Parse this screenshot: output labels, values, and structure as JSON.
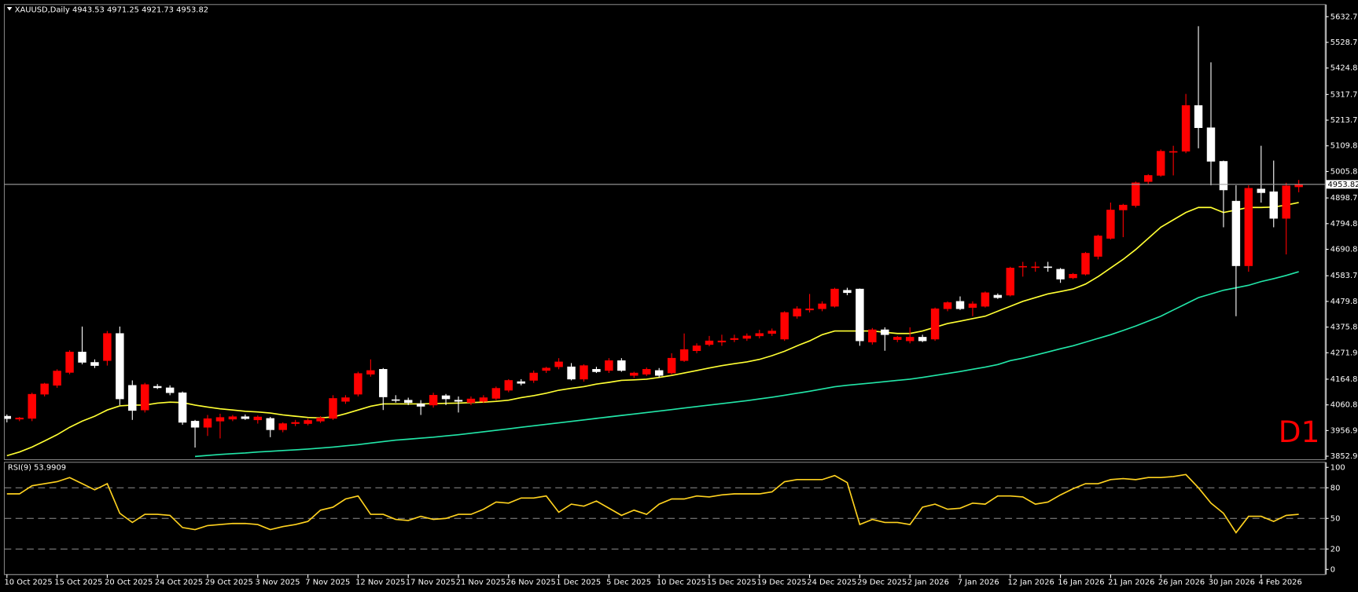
{
  "chart_data": [
    {
      "type": "candlestick",
      "title": "XAUUSD,Daily",
      "categories": [
        "10 Oct 2025",
        null,
        null,
        null,
        "15 Oct 2025",
        null,
        null,
        null,
        "20 Oct 2025",
        null,
        null,
        null,
        "24 Oct 2025",
        null,
        null,
        null,
        "29 Oct 2025",
        null,
        null,
        null,
        "3 Nov 2025",
        null,
        null,
        null,
        "7 Nov 2025",
        null,
        null,
        null,
        "12 Nov 2025",
        null,
        null,
        null,
        "17 Nov 2025",
        null,
        null,
        null,
        "21 Nov 2025",
        null,
        null,
        null,
        "26 Nov 2025",
        null,
        null,
        null,
        "1 Dec 2025",
        null,
        null,
        null,
        "5 Dec 2025",
        null,
        null,
        null,
        "10 Dec 2025",
        null,
        null,
        null,
        "15 Dec 2025",
        null,
        null,
        null,
        "19 Dec 2025",
        null,
        null,
        null,
        "24 Dec 2025",
        null,
        null,
        null,
        "29 Dec 2025",
        null,
        null,
        null,
        "2 Jan 2026",
        null,
        null,
        null,
        "7 Jan 2026",
        null,
        null,
        null,
        "12 Jan 2026",
        null,
        null,
        null,
        "16 Jan 2026",
        null,
        null,
        null,
        "21 Jan 2026",
        null,
        null,
        null,
        "26 Jan 2026",
        null,
        null,
        null,
        "30 Jan 2026",
        null,
        null,
        null,
        "4 Feb 2026",
        null,
        null,
        null
      ],
      "open": [
        4015,
        4003,
        4006,
        4104,
        4140,
        4192,
        4275,
        4233,
        4240,
        4350,
        4140,
        4040,
        4136,
        4130,
        4110,
        3995,
        3970,
        3995,
        4003,
        4013,
        4000,
        4006,
        3960,
        3985,
        3985,
        3995,
        4006,
        4075,
        4104,
        4185,
        4205,
        4082,
        4080,
        4065,
        4060,
        4098,
        4080,
        4070,
        4075,
        4087,
        4120,
        4155,
        4160,
        4200,
        4215,
        4215,
        4165,
        4205,
        4200,
        4240,
        4180,
        4185,
        4200,
        4190,
        4240,
        4280,
        4305,
        4315,
        4325,
        4330,
        4340,
        4350,
        4327,
        4420,
        4445,
        4450,
        4460,
        4525,
        4530,
        4315,
        4365,
        4325,
        4320,
        4335,
        4327,
        4450,
        4480,
        4455,
        4460,
        4505,
        4505,
        4620,
        4618,
        4620,
        4610,
        4575,
        4590,
        4662,
        4735,
        4850,
        4868,
        4965,
        4990,
        5085,
        5088,
        5273,
        5183,
        5047,
        4886,
        4624,
        4935,
        4924,
        4816,
        4943.53
      ],
      "high": [
        4022,
        4012,
        4110,
        4150,
        4205,
        4282,
        4378,
        4245,
        4360,
        4378,
        4160,
        4150,
        4145,
        4140,
        4115,
        4000,
        4020,
        4025,
        4020,
        4022,
        4018,
        4012,
        3990,
        4000,
        4005,
        4015,
        4100,
        4100,
        4195,
        4245,
        4210,
        4100,
        4090,
        4080,
        4110,
        4105,
        4095,
        4095,
        4100,
        4135,
        4165,
        4165,
        4200,
        4215,
        4250,
        4230,
        4225,
        4215,
        4250,
        4250,
        4195,
        4212,
        4210,
        4270,
        4350,
        4310,
        4340,
        4345,
        4345,
        4350,
        4365,
        4370,
        4440,
        4460,
        4510,
        4480,
        4535,
        4535,
        4532,
        4372,
        4375,
        4340,
        4375,
        4345,
        4455,
        4480,
        4500,
        4480,
        4520,
        4512,
        4620,
        4640,
        4640,
        4640,
        4615,
        4595,
        4680,
        4750,
        4880,
        4875,
        4965,
        4995,
        5095,
        5110,
        5320,
        5594,
        5448,
        5050,
        4950,
        4950,
        5110,
        5050,
        4960,
        4971.25
      ],
      "low": [
        3990,
        3995,
        3995,
        4095,
        4130,
        4185,
        4225,
        4210,
        4220,
        4060,
        4000,
        4030,
        4125,
        4100,
        3980,
        3888,
        3935,
        3925,
        3995,
        4000,
        3985,
        3930,
        3950,
        3975,
        3978,
        3988,
        4000,
        4065,
        4095,
        4175,
        4040,
        4070,
        4060,
        4020,
        4050,
        4060,
        4030,
        4060,
        4068,
        4080,
        4112,
        4140,
        4150,
        4190,
        4205,
        4160,
        4155,
        4190,
        4190,
        4195,
        4170,
        4178,
        4172,
        4185,
        4235,
        4270,
        4298,
        4300,
        4315,
        4320,
        4330,
        4340,
        4320,
        4410,
        4435,
        4440,
        4455,
        4505,
        4300,
        4305,
        4280,
        4315,
        4310,
        4315,
        4320,
        4440,
        4445,
        4420,
        4455,
        4490,
        4500,
        4580,
        4600,
        4600,
        4555,
        4570,
        4585,
        4650,
        4730,
        4740,
        4860,
        4955,
        4985,
        4990,
        5080,
        5100,
        4950,
        4780,
        4420,
        4600,
        4880,
        4780,
        4670,
        4921.73
      ],
      "close": [
        4005,
        4008,
        4104,
        4146,
        4198,
        4275,
        4233,
        4220,
        4350,
        4085,
        4038,
        4143,
        4130,
        4110,
        3990,
        3970,
        4005,
        4010,
        4013,
        4005,
        4012,
        3960,
        3985,
        3990,
        3998,
        4008,
        4087,
        4090,
        4188,
        4200,
        4093,
        4080,
        4070,
        4055,
        4100,
        4085,
        4075,
        4085,
        4090,
        4128,
        4160,
        4148,
        4190,
        4210,
        4235,
        4165,
        4220,
        4195,
        4240,
        4200,
        4190,
        4205,
        4180,
        4250,
        4285,
        4300,
        4320,
        4320,
        4330,
        4340,
        4350,
        4360,
        4435,
        4450,
        4450,
        4470,
        4530,
        4515,
        4320,
        4365,
        4345,
        4335,
        4335,
        4320,
        4450,
        4475,
        4450,
        4470,
        4515,
        4495,
        4615,
        4622,
        4620,
        4618,
        4570,
        4590,
        4675,
        4745,
        4850,
        4870,
        4960,
        4990,
        5088,
        5087,
        5273,
        5183,
        5047,
        4931,
        4624,
        4938,
        4920,
        4816,
        4948,
        4953.82
      ],
      "up_color": "#ff0000",
      "down_color": "#ffffff",
      "price_line_color": "#a0a0a0",
      "ylim": [
        3839,
        5682
      ],
      "yticks": [
        {
          "value": 5632.7,
          "label": "5632.70"
        },
        5528.75,
        {
          "value": 5424.8,
          "label": "5424.80"
        },
        {
          "value": 5317.7,
          "label": "5317.70"
        },
        5213.75,
        {
          "value": 5109.8,
          "label": "5109.80"
        },
        5005.85,
        4898.75,
        {
          "value": 4794.8,
          "label": "4794.80"
        },
        4690.85,
        4583.75,
        {
          "value": 4479.8,
          "label": "4479.80"
        },
        4375.85,
        {
          "value": 4271.9,
          "label": "4271.90"
        },
        {
          "value": 4164.8,
          "label": "4164.80"
        },
        4060.85,
        {
          "value": 3956.9,
          "label": "3956.90"
        },
        3852.95
      ],
      "lines": [
        {
          "color": "#ffff33",
          "values": [
            3855,
            3870,
            3890,
            3915,
            3940,
            3970,
            3995,
            4015,
            4040,
            4057,
            4060,
            4060,
            4068,
            4072,
            4070,
            4060,
            4052,
            4045,
            4040,
            4035,
            4032,
            4028,
            4020,
            4015,
            4010,
            4008,
            4012,
            4025,
            4040,
            4055,
            4065,
            4065,
            4065,
            4065,
            4066,
            4067,
            4068,
            4070,
            4072,
            4075,
            4080,
            4090,
            4098,
            4108,
            4120,
            4128,
            4135,
            4145,
            4152,
            4160,
            4162,
            4165,
            4172,
            4180,
            4190,
            4200,
            4210,
            4220,
            4228,
            4235,
            4245,
            4260,
            4278,
            4300,
            4320,
            4345,
            4360,
            4360,
            4360,
            4360,
            4355,
            4350,
            4350,
            4360,
            4375,
            4390,
            4400,
            4410,
            4420,
            4440,
            4460,
            4480,
            4495,
            4510,
            4520,
            4530,
            4550,
            4580,
            4615,
            4650,
            4690,
            4735,
            4780,
            4810,
            4840,
            4860,
            4860,
            4840,
            4850,
            4860,
            4860,
            4862,
            4870,
            4880
          ]
        },
        {
          "color": "#22e6a8",
          "values": [
            null,
            null,
            null,
            null,
            null,
            null,
            null,
            null,
            null,
            null,
            null,
            null,
            null,
            null,
            null,
            3852,
            3856,
            3860,
            3863,
            3866,
            3870,
            3873,
            3876,
            3879,
            3882,
            3886,
            3890,
            3895,
            3900,
            3906,
            3912,
            3918,
            3922,
            3926,
            3930,
            3935,
            3940,
            3946,
            3952,
            3958,
            3964,
            3970,
            3976,
            3982,
            3988,
            3994,
            4000,
            4006,
            4012,
            4018,
            4024,
            4030,
            4036,
            4042,
            4048,
            4054,
            4060,
            4066,
            4072,
            4078,
            4085,
            4092,
            4100,
            4108,
            4116,
            4125,
            4134,
            4140,
            4145,
            4150,
            4155,
            4160,
            4165,
            4172,
            4180,
            4188,
            4196,
            4205,
            4214,
            4224,
            4240,
            4250,
            4262,
            4275,
            4288,
            4300,
            4315,
            4330,
            4345,
            4362,
            4380,
            4400,
            4420,
            4445,
            4470,
            4495,
            4510,
            4525,
            4535,
            4545,
            4560,
            4572,
            4585,
            4600
          ]
        }
      ],
      "annotation": "D1"
    },
    {
      "type": "line",
      "title": "RSI(9)",
      "series": [
        {
          "color": "#ffd21f",
          "values": [
            74,
            74,
            82,
            84,
            86,
            90,
            84,
            78,
            84,
            55,
            46,
            54,
            54,
            53,
            41,
            39,
            43,
            44,
            45,
            45,
            44,
            39,
            42,
            44,
            47,
            58,
            61,
            69,
            72,
            54,
            54,
            49,
            48,
            52,
            49,
            50,
            54,
            54,
            59,
            66,
            65,
            70,
            70,
            72,
            56,
            64,
            62,
            67,
            60,
            53,
            58,
            54,
            64,
            69,
            69,
            72,
            71,
            73,
            74,
            74,
            74,
            76,
            86,
            88,
            88,
            88,
            92,
            85,
            44,
            49,
            46,
            46,
            44,
            61,
            64,
            59,
            60,
            65,
            64,
            72,
            72,
            71,
            64,
            66,
            73,
            79,
            84,
            84,
            88,
            89,
            88,
            90,
            90,
            91,
            93,
            80,
            65,
            55,
            36,
            52,
            52,
            47,
            53,
            53.9909
          ]
        }
      ],
      "ylim": [
        -5,
        105
      ],
      "yticks": [
        100,
        80,
        50,
        20,
        0
      ],
      "levels": [
        80,
        50,
        20
      ]
    }
  ]
}
